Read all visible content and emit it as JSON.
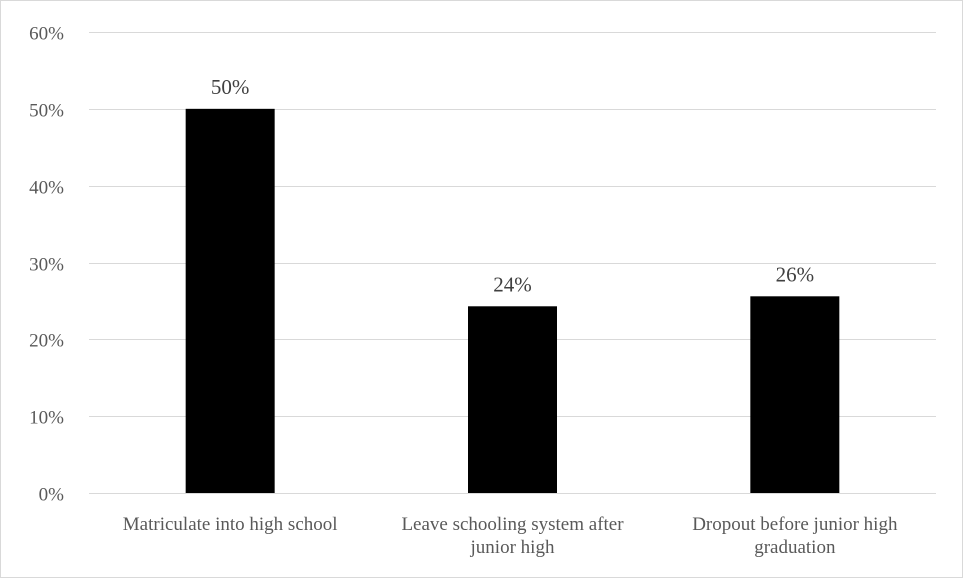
{
  "chart_data": {
    "type": "bar",
    "title": "",
    "xlabel": "",
    "ylabel": "",
    "categories": [
      [
        "Matriculate into high school"
      ],
      [
        "Leave schooling system after",
        "junior high"
      ],
      [
        "Dropout before junior high",
        "graduation"
      ]
    ],
    "values": [
      0.5,
      0.243,
      0.256
    ],
    "data_labels": [
      "50%",
      "24%",
      "26%"
    ],
    "ylim": [
      0,
      0.6
    ],
    "yticks": [
      0,
      0.1,
      0.2,
      0.3,
      0.4,
      0.5,
      0.6
    ],
    "ytick_labels": [
      "0%",
      "10%",
      "20%",
      "30%",
      "40%",
      "50%",
      "60%"
    ],
    "grid": true,
    "legend": "none",
    "bar_color": "#000000",
    "grid_color": "#d9d9d9"
  }
}
